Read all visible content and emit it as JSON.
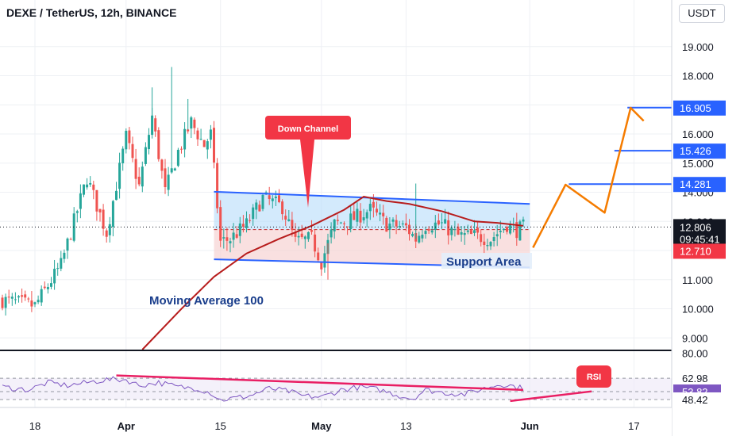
{
  "header": {
    "title": "DEXE / TetherUS, 12h, BINANCE",
    "currency": "USDT"
  },
  "colors": {
    "up": "#26a69a",
    "down": "#ef5350",
    "ma": "#b71c1c",
    "channel": "#2962ff",
    "projection": "#f57c00",
    "callout": "#f23645",
    "rsi_line": "#7e57c2",
    "rsi_trend": "#e91e63"
  },
  "chart_data": [
    {
      "type": "candlestick",
      "ylim": [
        8.6,
        20.6
      ],
      "x_ticks": [
        "18",
        "Apr",
        "15",
        "May",
        "13",
        "Jun",
        "17"
      ],
      "y_ticks": [
        9.0,
        10.0,
        11.0,
        12.0,
        13.0,
        14.0,
        15.0,
        16.0,
        17.0,
        18.0,
        19.0
      ],
      "y_tick_labels": [
        "9.000",
        "10.000",
        "11.000",
        "12.000",
        "13.000",
        "14.000",
        "15.000",
        "16.000",
        "17.000",
        "18.000",
        "19.000"
      ],
      "price_anchors": [
        [
          0,
          10.3
        ],
        [
          10,
          10.1
        ],
        [
          18,
          11.5
        ],
        [
          26,
          14.5
        ],
        [
          32,
          12.6
        ],
        [
          38,
          15.9
        ],
        [
          42,
          14.2
        ],
        [
          46,
          16.6
        ],
        [
          50,
          14.0
        ],
        [
          54,
          15.4
        ],
        [
          58,
          16.4
        ],
        [
          62,
          15.6
        ],
        [
          64,
          16.0
        ],
        [
          67,
          12.3
        ],
        [
          70,
          12.4
        ],
        [
          75,
          12.9
        ],
        [
          80,
          13.8
        ],
        [
          86,
          13.5
        ],
        [
          90,
          12.3
        ],
        [
          95,
          12.4
        ],
        [
          98,
          11.6
        ],
        [
          102,
          12.9
        ],
        [
          108,
          13.1
        ],
        [
          113,
          13.4
        ],
        [
          118,
          12.9
        ],
        [
          124,
          12.8
        ],
        [
          127,
          12.4
        ],
        [
          130,
          12.9
        ],
        [
          135,
          12.9
        ],
        [
          140,
          12.5
        ],
        [
          145,
          12.5
        ],
        [
          150,
          12.4
        ],
        [
          155,
          12.9
        ],
        [
          158,
          12.7
        ],
        [
          160,
          12.8
        ]
      ],
      "moving_average": {
        "label": "Moving Average 100",
        "points": [
          [
            43,
            8.6
          ],
          [
            55,
            10.0
          ],
          [
            65,
            11.1
          ],
          [
            75,
            11.9
          ],
          [
            85,
            12.4
          ],
          [
            95,
            12.85
          ],
          [
            105,
            13.4
          ],
          [
            111,
            13.85
          ],
          [
            118,
            13.7
          ],
          [
            125,
            13.6
          ],
          [
            135,
            13.35
          ],
          [
            145,
            13.0
          ],
          [
            152,
            12.95
          ],
          [
            160,
            12.85
          ]
        ]
      },
      "annotations": {
        "down_channel": "Down Channel",
        "support_area": "Support Area",
        "channel_upper": [
          [
            65,
            14.02
          ],
          [
            162,
            13.6
          ]
        ],
        "channel_lower": [
          [
            65,
            11.7
          ],
          [
            162,
            11.42
          ]
        ],
        "projection": [
          [
            163,
            12.1
          ],
          [
            173,
            14.26
          ],
          [
            185,
            13.3
          ],
          [
            193,
            16.9
          ],
          [
            197,
            16.45
          ]
        ]
      },
      "price_labels": [
        {
          "value": 16.905,
          "text": "16.905",
          "style": "level"
        },
        {
          "value": 15.426,
          "text": "15.426",
          "style": "level"
        },
        {
          "value": 14.281,
          "text": "14.281",
          "style": "level"
        },
        {
          "value": 12.806,
          "text": "12.806",
          "style": "last",
          "countdown": "09:45:41"
        },
        {
          "value": 12.71,
          "text": "12.710",
          "style": "red"
        }
      ]
    },
    {
      "type": "line",
      "name": "RSI",
      "ylim": [
        43,
        82
      ],
      "y_ticks": [
        80.0
      ],
      "y_tick_labels": [
        "80.00"
      ],
      "levels": [
        62.98,
        53.82,
        48.42
      ],
      "level_labels": [
        "62.98",
        "53.82",
        "48.42"
      ],
      "rsi_anchors": [
        [
          0,
          57
        ],
        [
          8,
          55
        ],
        [
          14,
          60
        ],
        [
          20,
          58
        ],
        [
          26,
          60
        ],
        [
          32,
          62
        ],
        [
          38,
          62
        ],
        [
          42,
          58
        ],
        [
          48,
          60
        ],
        [
          54,
          57
        ],
        [
          60,
          56
        ],
        [
          64,
          53
        ],
        [
          67,
          48
        ],
        [
          70,
          49
        ],
        [
          76,
          51
        ],
        [
          82,
          56
        ],
        [
          88,
          54
        ],
        [
          92,
          51
        ],
        [
          98,
          50
        ],
        [
          104,
          55
        ],
        [
          110,
          57
        ],
        [
          116,
          55
        ],
        [
          122,
          51
        ],
        [
          126,
          49
        ],
        [
          130,
          55
        ],
        [
          136,
          53
        ],
        [
          142,
          52
        ],
        [
          148,
          56
        ],
        [
          153,
          59
        ],
        [
          156,
          58
        ],
        [
          160,
          56
        ]
      ],
      "trend_down": [
        [
          35,
          64.9
        ],
        [
          160,
          55.0
        ]
      ],
      "trend_up": [
        [
          156,
          47.4
        ],
        [
          181,
          54.0
        ]
      ],
      "callout": "RSI"
    }
  ]
}
